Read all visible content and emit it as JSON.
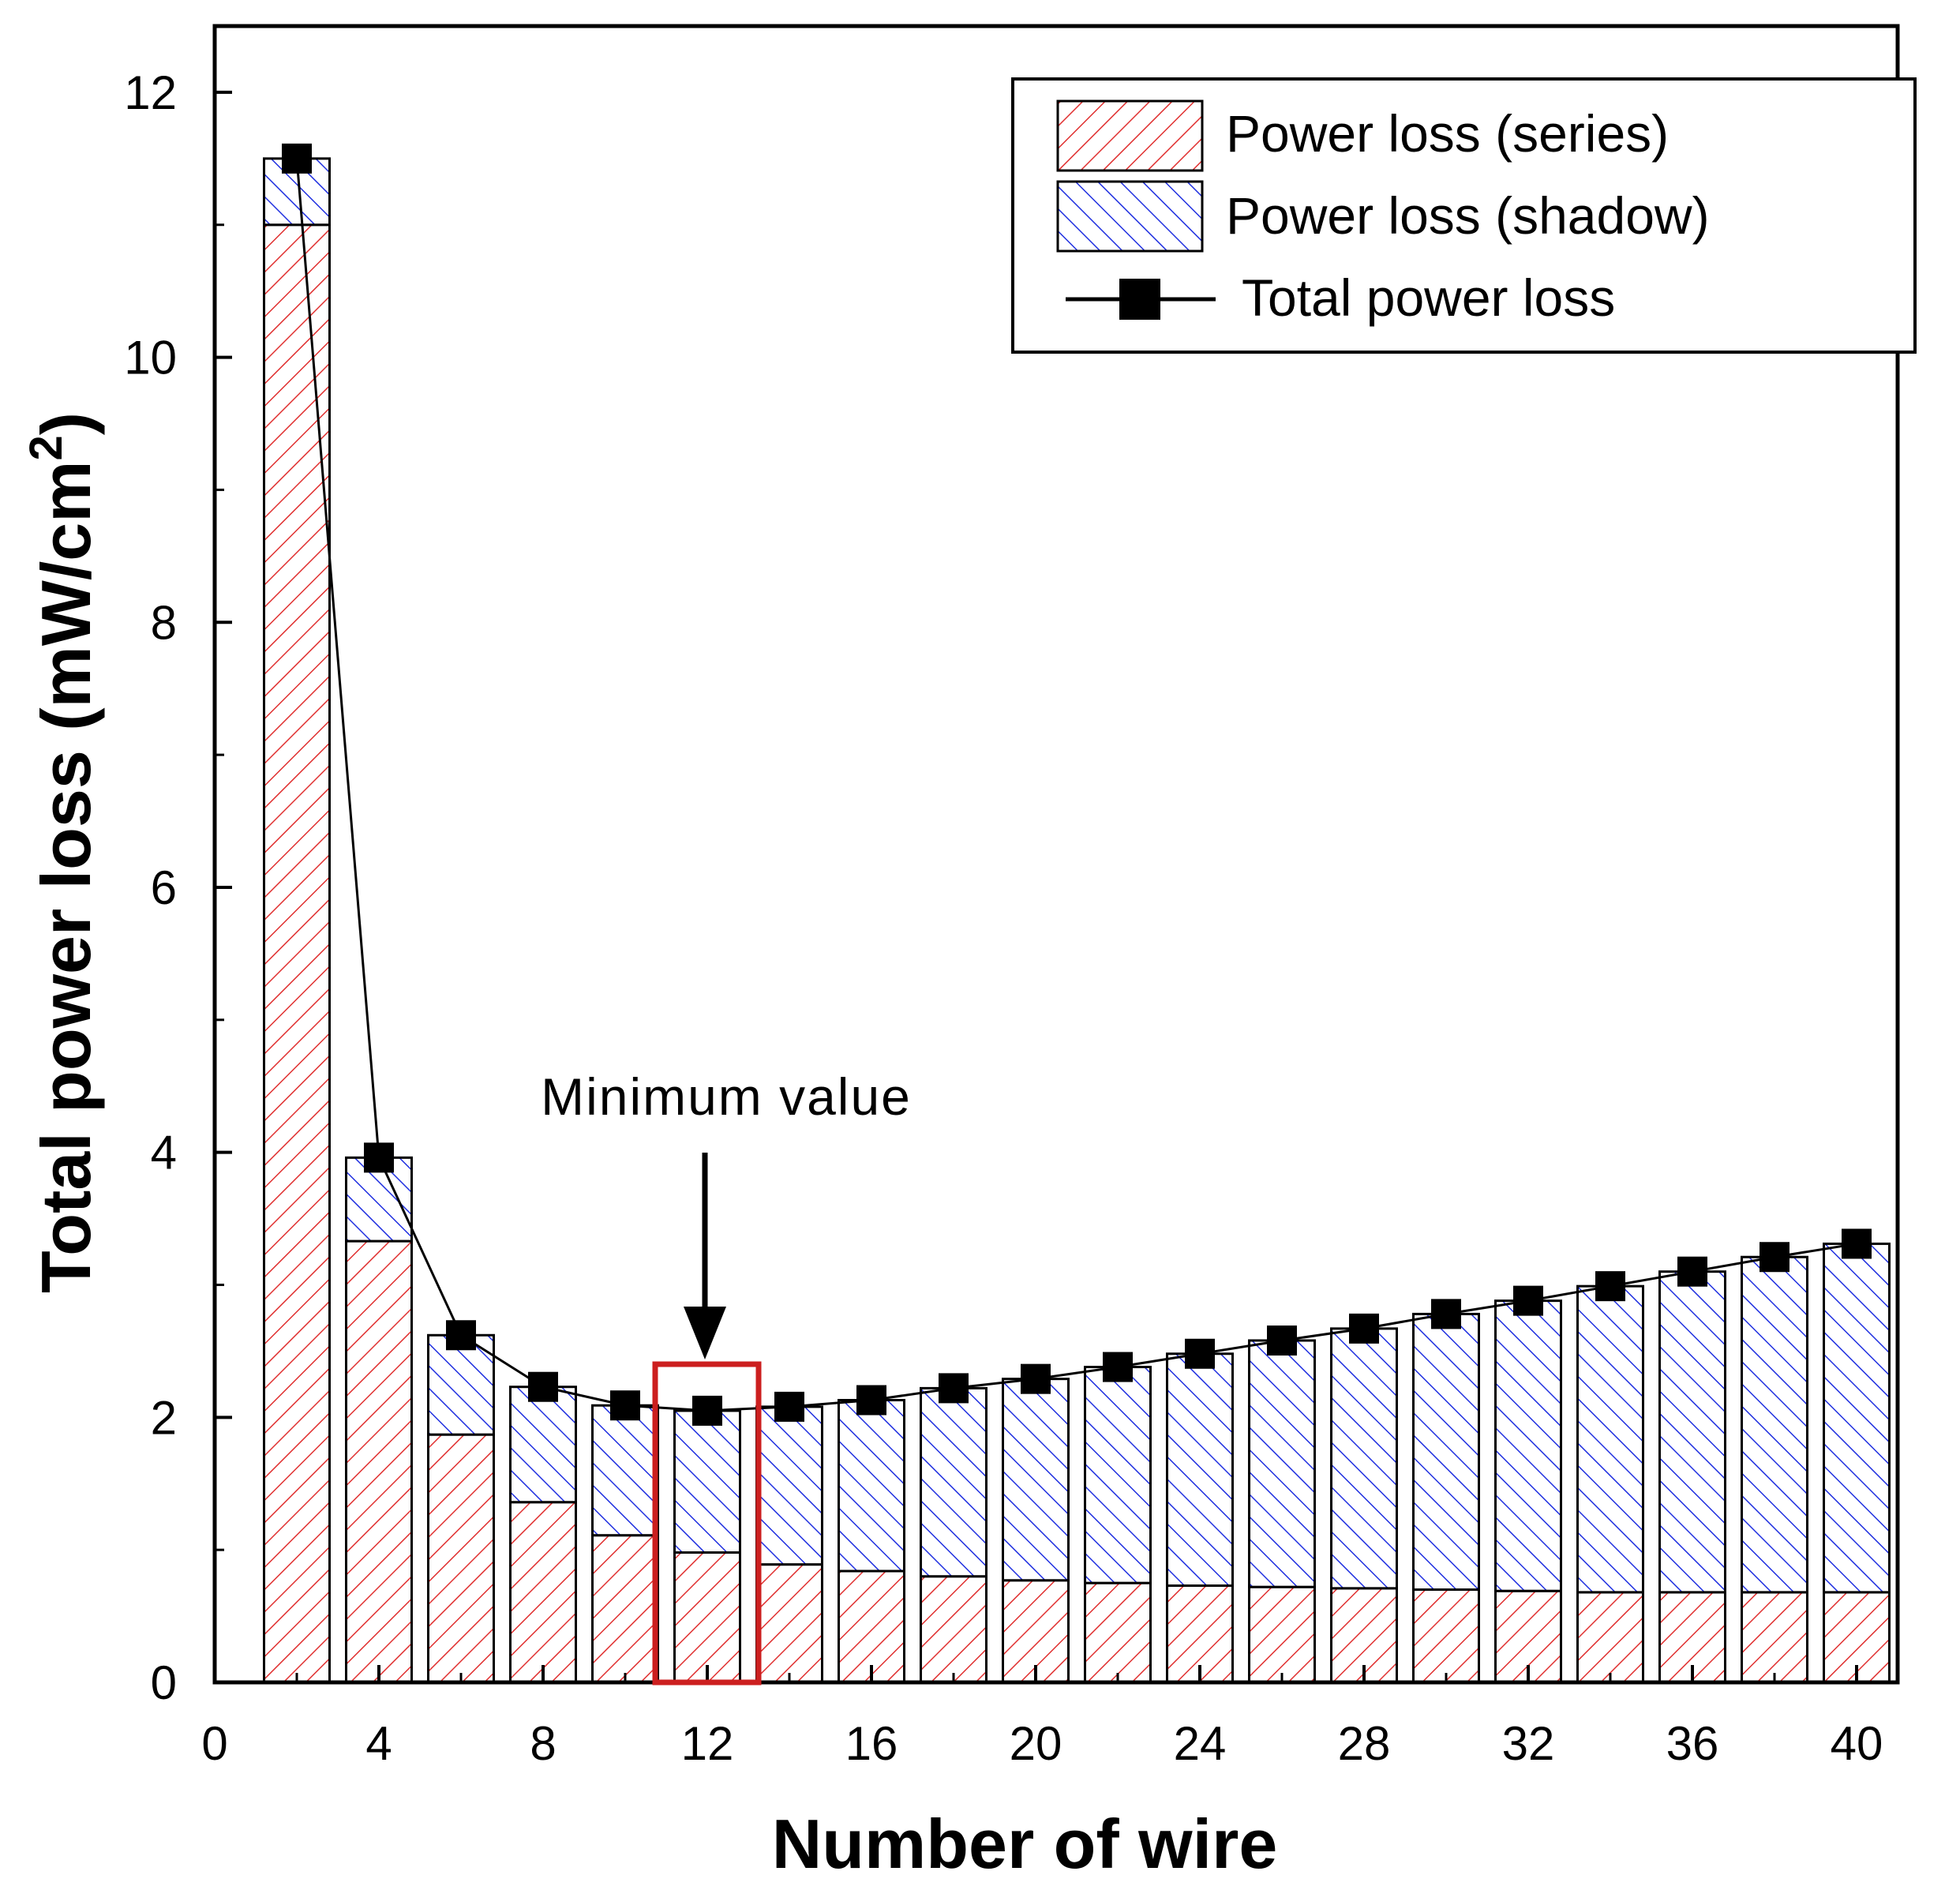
{
  "chart_data": {
    "type": "bar",
    "stacked": true,
    "xlabel": "Number of wire",
    "ylabel": "Total power loss (mW/cm",
    "ylabel_sup": "2",
    "ylabel_close": ")",
    "xlim": [
      0,
      41
    ],
    "ylim": [
      0,
      12.5
    ],
    "xticks": [
      0,
      4,
      8,
      12,
      16,
      20,
      24,
      28,
      32,
      36,
      40
    ],
    "yticks": [
      0,
      2,
      4,
      6,
      8,
      10,
      12
    ],
    "x": [
      2,
      4,
      6,
      8,
      10,
      12,
      14,
      16,
      18,
      20,
      22,
      24,
      26,
      28,
      30,
      32,
      34,
      36,
      38,
      40
    ],
    "series": [
      {
        "name": "Power loss (series)",
        "kind": "bar",
        "color": "#e03030",
        "pattern": "hatch-forward",
        "values": [
          11.0,
          3.33,
          1.87,
          1.36,
          1.11,
          0.98,
          0.89,
          0.84,
          0.8,
          0.77,
          0.75,
          0.73,
          0.72,
          0.71,
          0.7,
          0.69,
          0.68,
          0.68,
          0.68,
          0.68
        ]
      },
      {
        "name": "Power loss (shadow)",
        "kind": "bar",
        "color": "#2030e0",
        "pattern": "hatch-back",
        "values": [
          0.5,
          0.63,
          0.75,
          0.87,
          0.98,
          1.07,
          1.19,
          1.29,
          1.42,
          1.52,
          1.63,
          1.75,
          1.86,
          1.96,
          2.08,
          2.19,
          2.31,
          2.42,
          2.53,
          2.63
        ]
      },
      {
        "name": "Total power loss",
        "kind": "line",
        "color": "#000000",
        "marker": "square",
        "values": [
          11.5,
          3.96,
          2.62,
          2.23,
          2.09,
          2.05,
          2.08,
          2.13,
          2.22,
          2.29,
          2.38,
          2.48,
          2.58,
          2.67,
          2.78,
          2.88,
          2.99,
          3.1,
          3.21,
          3.31
        ]
      }
    ],
    "legend_position": "top-right",
    "annotations": [
      {
        "text": "Minimum value",
        "target_x": 12,
        "target_y": 2.05,
        "highlight_color": "#cc1f1f"
      }
    ]
  }
}
